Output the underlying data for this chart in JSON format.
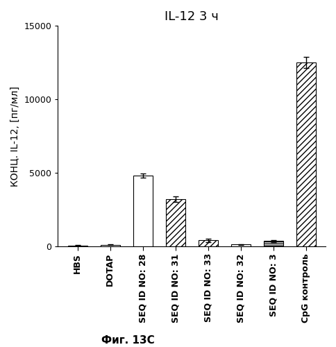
{
  "title": "IL-12 3 ч",
  "ylabel": "КОНЦ. IL-12, [пг/мл]",
  "figcaption": "Фиг. 13С",
  "ylim": [
    0,
    15000
  ],
  "yticks": [
    0,
    5000,
    10000,
    15000
  ],
  "categories": [
    "HBS",
    "DOTAP",
    "SEQ ID NO: 28",
    "SEQ ID NO: 31",
    "SEQ ID NO: 33",
    "SEQ ID NO: 32",
    "SEQ ID NO: 3",
    "CpG контроль"
  ],
  "values": [
    50,
    100,
    4800,
    3200,
    400,
    120,
    350,
    12500
  ],
  "errors": [
    15,
    25,
    130,
    180,
    130,
    30,
    60,
    380
  ],
  "hatch_patterns": [
    "",
    "",
    "======",
    "////",
    "////",
    "",
    "------",
    "////"
  ],
  "bar_width": 0.6,
  "title_fontsize": 13,
  "ylabel_fontsize": 10,
  "tick_fontsize": 9,
  "xtick_fontsize": 9,
  "caption_fontsize": 11
}
